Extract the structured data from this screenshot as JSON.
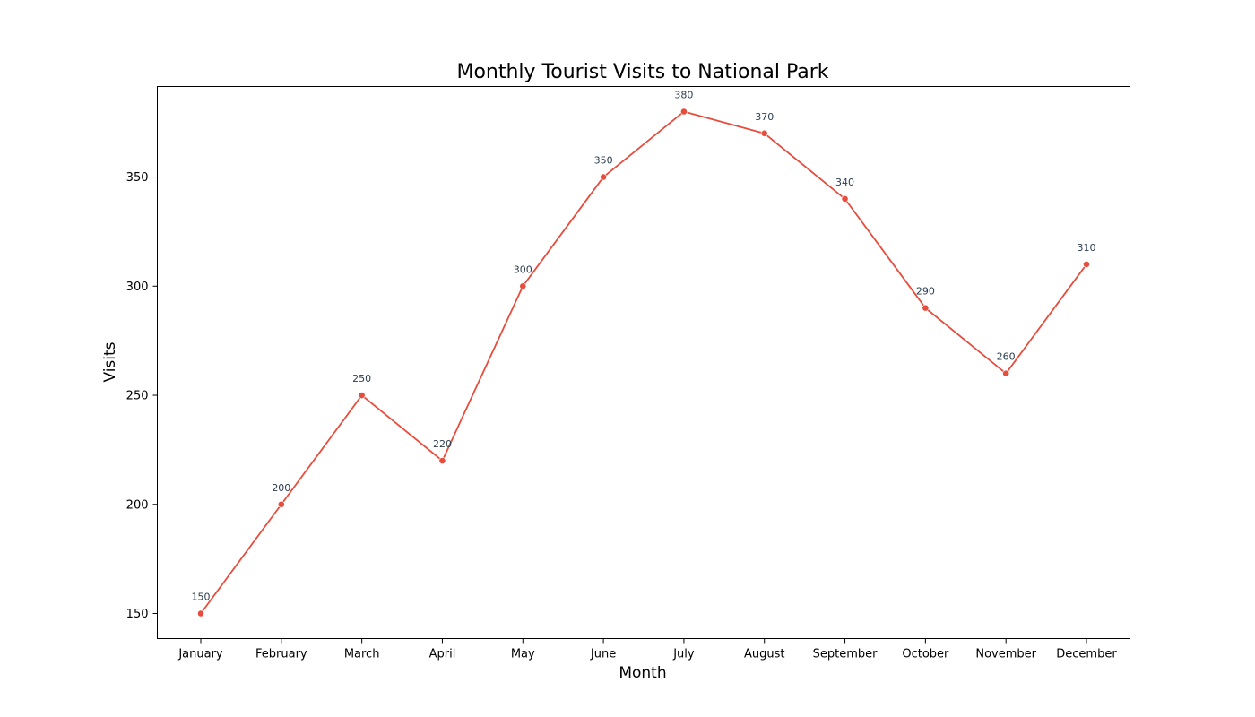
{
  "chart_data": {
    "type": "line",
    "title": "Monthly Tourist Visits to National Park",
    "xlabel": "Month",
    "ylabel": "Visits",
    "categories": [
      "January",
      "February",
      "March",
      "April",
      "May",
      "June",
      "July",
      "August",
      "September",
      "October",
      "November",
      "December"
    ],
    "series": [
      {
        "values": [
          150,
          200,
          250,
          220,
          300,
          350,
          380,
          370,
          340,
          290,
          260,
          310
        ],
        "color": "#e74c3c"
      }
    ],
    "ylim": [
      138.5,
      391.5
    ],
    "yticks": [
      150,
      200,
      250,
      300,
      350
    ],
    "data_labels": true,
    "grid": false,
    "legend": "none"
  }
}
